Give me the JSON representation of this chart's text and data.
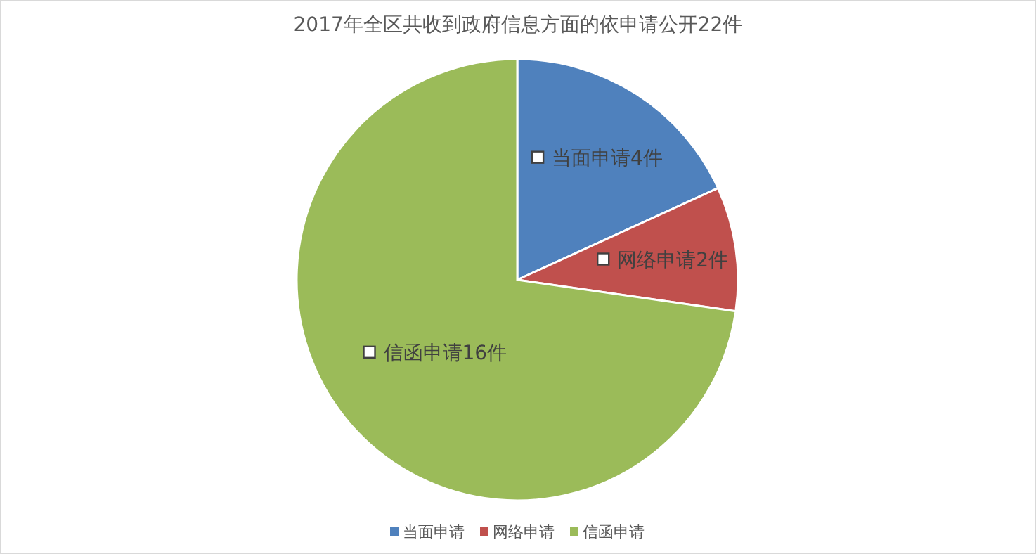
{
  "chart_data": {
    "type": "pie",
    "title": "2017年全区共收到政府信息方面的依申请公开22件",
    "categories": [
      "当面申请",
      "网络申请",
      "信函申请"
    ],
    "values": [
      4,
      2,
      16
    ],
    "colors": [
      "#4f81bd",
      "#c0504d",
      "#9bbb59"
    ],
    "value_labels": [
      "当面申请4件",
      "网络申请2件",
      "信函申请16件"
    ],
    "legend": "bottom"
  }
}
